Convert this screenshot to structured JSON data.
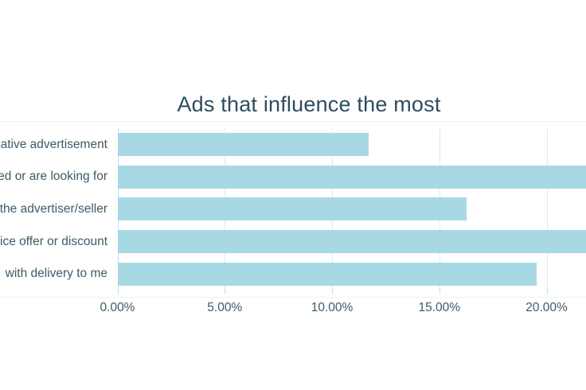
{
  "page": {
    "background_color": "#ffffff"
  },
  "chart_data": {
    "type": "bar",
    "orientation": "horizontal",
    "title": "Ads that influence the most",
    "title_color": "#2e4d5f",
    "text_color": "#3f5a68",
    "bar_color": "#a7d8e3",
    "gridline_color": "#dcebf2",
    "axis_line_color": "#c3dfea",
    "plot_border_color": "#eaf3f7",
    "grid": true,
    "legend": false,
    "xlabel": "",
    "ylabel": "",
    "categories": [
      "ative advertisement",
      "ed or are looking for",
      "the advertiser/seller",
      "ice offer or discount",
      "with delivery to me"
    ],
    "categories_cropped_at_left_edge": true,
    "values": [
      11.7,
      21.8,
      16.25,
      21.8,
      19.5
    ],
    "values_unit": "%",
    "bars_clipped_at_right_edge": [
      false,
      true,
      false,
      true,
      false
    ],
    "x_ticks": [
      {
        "label": "0.00%",
        "value": 0
      },
      {
        "label": "5.00%",
        "value": 5
      },
      {
        "label": "10.00%",
        "value": 10
      },
      {
        "label": "15.00%",
        "value": 15
      },
      {
        "label": "20.00%",
        "value": 20
      }
    ],
    "xlim_visible": [
      0,
      21.8
    ]
  }
}
